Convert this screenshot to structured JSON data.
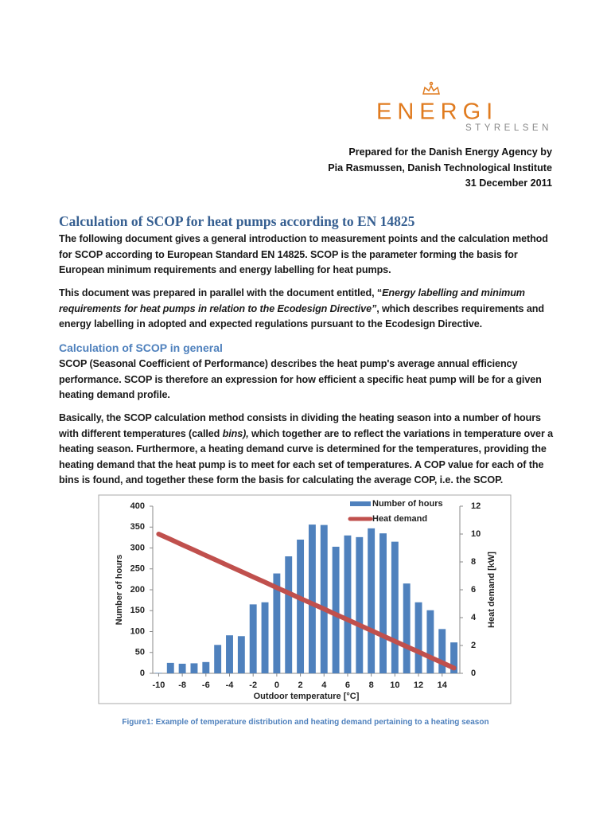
{
  "header": {
    "logo": "ENERGI",
    "logo_sub": "STYRELSEN",
    "prepared_lines": [
      "Prepared for the Danish Energy Agency by",
      "Pia Rasmussen, Danish Technological Institute",
      "31 December 2011"
    ]
  },
  "title": "Calculation of SCOP for heat pumps according to EN 14825",
  "paragraphs": [
    [
      "The following document gives a general introduction to measurement points and the calculation method for SCOP according to European Standard EN 14825. SCOP is the parameter forming the basis for European minimum requirements and energy labelling for heat pumps."
    ],
    [
      "This document was prepared in parallel with the document entitled, “",
      "Energy labelling and minimum requirements for heat pumps in relation to the Ecodesign Directive”",
      ", which describes requirements and energy labelling in adopted and expected regulations pursuant to the Ecodesign Directive."
    ]
  ],
  "section_heading": "Calculation of SCOP in general",
  "section_paragraphs": [
    [
      "SCOP (Seasonal Coefficient of Performance) describes the heat pump's average annual efficiency performance. SCOP is therefore an expression for how efficient a specific heat pump will be for a given heating demand profile."
    ],
    [
      "Basically, the SCOP calculation method consists in dividing the heating season into a number of hours with different temperatures (called ",
      "bins),",
      " which together are to reflect the variations in temperature over a heating season. Furthermore, a heating demand curve is determined for the temperatures, providing the heating demand that the heat pump is to meet for each set of temperatures. A COP value for each of the bins is found, and together these form the basis for calculating the average COP, i.e. the SCOP."
    ]
  ],
  "chart_data": {
    "type": "bar",
    "x_label": "Outdoor temperature [°C]",
    "y_label": "Number of hours",
    "y2_label": "Heat demand [kW]",
    "x": [
      -10,
      -9,
      -8,
      -7,
      -6,
      -5,
      -4,
      -3,
      -2,
      -1,
      0,
      1,
      2,
      3,
      4,
      5,
      6,
      7,
      8,
      9,
      10,
      11,
      12,
      13,
      14,
      15
    ],
    "series": [
      {
        "name": "Number of hours",
        "type": "bar",
        "color": "#4f81bd",
        "values": [
          1,
          25,
          23,
          24,
          27,
          68,
          91,
          89,
          165,
          170,
          239,
          280,
          320,
          356,
          355,
          303,
          330,
          326,
          347,
          335,
          315,
          215,
          170,
          151,
          106,
          74
        ]
      },
      {
        "name": "Heat demand",
        "type": "line",
        "axis": "y2",
        "color": "#c0504d",
        "values": [
          10,
          9.62,
          9.23,
          8.85,
          8.46,
          8.08,
          7.69,
          7.31,
          6.92,
          6.54,
          6.15,
          5.77,
          5.38,
          5,
          4.62,
          4.23,
          3.85,
          3.46,
          3.08,
          2.69,
          2.31,
          1.92,
          1.54,
          1.15,
          0.77,
          0.38
        ]
      }
    ],
    "xlim": [
      -10.5,
      15.5
    ],
    "xticks": [
      -10,
      -8,
      -6,
      -4,
      -2,
      0,
      2,
      4,
      6,
      8,
      10,
      12,
      14
    ],
    "ylim": [
      0,
      400
    ],
    "yticks": [
      0,
      50,
      100,
      150,
      200,
      250,
      300,
      350,
      400
    ],
    "y2lim": [
      0,
      12
    ],
    "y2ticks": [
      0,
      2,
      4,
      6,
      8,
      10,
      12
    ],
    "grid": false,
    "legend": "top"
  },
  "caption": "Figure1: Example of temperature distribution and heating demand pertaining to a heating season"
}
